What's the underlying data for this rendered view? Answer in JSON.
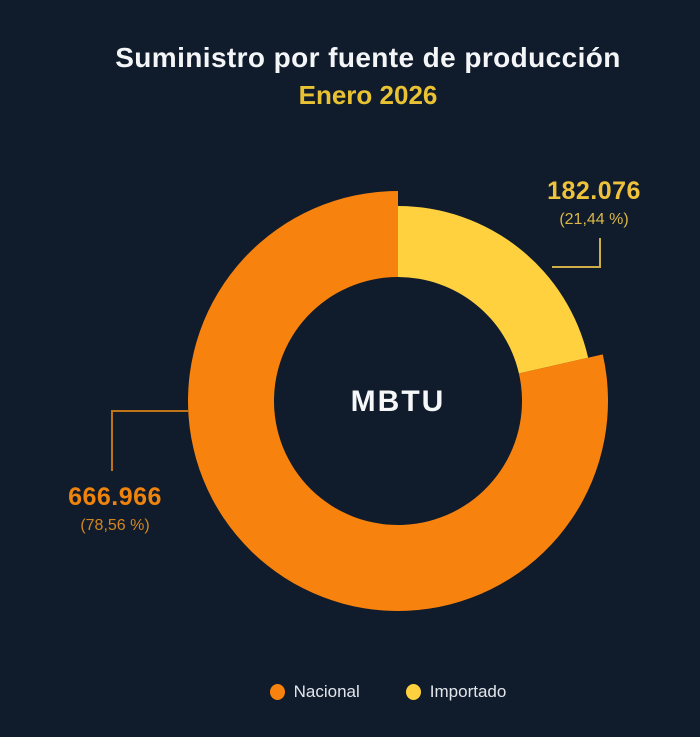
{
  "title": {
    "line1": "Suministro por fuente de producción",
    "line2": "Enero 2026"
  },
  "center_label": "MBTU",
  "colors": {
    "background": "#101b2c",
    "nacional_orange": "#f7820d",
    "importado_yellow": "#ffd13f",
    "title_white": "#f3f5f7",
    "subtitle_gold": "#e9c233"
  },
  "chart_data": {
    "type": "pie",
    "title": "Suministro por fuente de producción",
    "subtitle": "Enero 2026",
    "unit": "MBTU",
    "legend_position": "bottom",
    "grid": false,
    "start_angle_deg": 0,
    "center": [
      398,
      401
    ],
    "inner_radius": 124,
    "slices": [
      {
        "name": "Importado",
        "value": 182076,
        "display_value": "182.076",
        "pct": 21.44,
        "display_pct": "(21,44 %)",
        "color": "#ffd13f",
        "outer_radius": 195
      },
      {
        "name": "Nacional",
        "value": 666966,
        "display_value": "666.966",
        "pct": 78.56,
        "display_pct": "(78,56 %)",
        "color": "#f7820d",
        "outer_radius": 210
      }
    ]
  },
  "annotations": {
    "importado": {
      "value": "182.076",
      "pct": "(21,44 %)"
    },
    "nacional": {
      "value": "666.966",
      "pct": "(78,56 %)"
    }
  },
  "legend": [
    {
      "label": "Nacional",
      "color": "#f7820d"
    },
    {
      "label": "Importado",
      "color": "#ffd13f"
    }
  ]
}
